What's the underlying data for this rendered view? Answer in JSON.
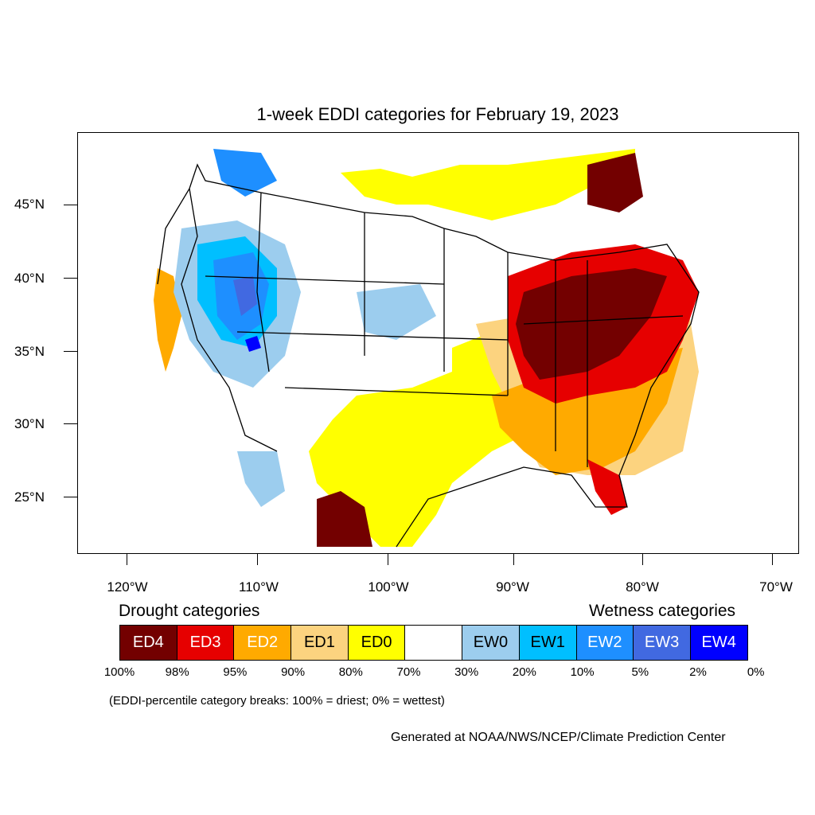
{
  "title": "1-week EDDI categories for February 19, 2023",
  "lat_labels": [
    "45°N",
    "40°N",
    "35°N",
    "30°N",
    "25°N"
  ],
  "lon_labels": [
    "120°W",
    "110°W",
    "100°W",
    "90°W",
    "80°W",
    "70°W"
  ],
  "legend": {
    "drought_heading": "Drought categories",
    "wetness_heading": "Wetness categories",
    "categories": [
      {
        "label": "ED4",
        "color": "#730000",
        "text_color": "#ffffff"
      },
      {
        "label": "ED3",
        "color": "#e60000",
        "text_color": "#ffffff"
      },
      {
        "label": "ED2",
        "color": "#ffaa00",
        "text_color": "#ffffff"
      },
      {
        "label": "ED1",
        "color": "#fcd37f",
        "text_color": "#000000"
      },
      {
        "label": "ED0",
        "color": "#ffff00",
        "text_color": "#000000"
      },
      {
        "label": "",
        "color": "#ffffff",
        "text_color": "#000000"
      },
      {
        "label": "EW0",
        "color": "#9ccdee",
        "text_color": "#000000"
      },
      {
        "label": "EW1",
        "color": "#00bfff",
        "text_color": "#000000"
      },
      {
        "label": "EW2",
        "color": "#1e8fff",
        "text_color": "#ffffff"
      },
      {
        "label": "EW3",
        "color": "#4169e1",
        "text_color": "#ffffff"
      },
      {
        "label": "EW4",
        "color": "#0000ff",
        "text_color": "#ffffff"
      }
    ],
    "percentiles": [
      "100%",
      "98%",
      "95%",
      "90%",
      "80%",
      "70%",
      "30%",
      "20%",
      "10%",
      "5%",
      "2%",
      "0%"
    ]
  },
  "note": "(EDDI-percentile category breaks: 100% = driest; 0% = wettest)",
  "credit": "Generated at NOAA/NWS/NCEP/Climate Prediction Center"
}
